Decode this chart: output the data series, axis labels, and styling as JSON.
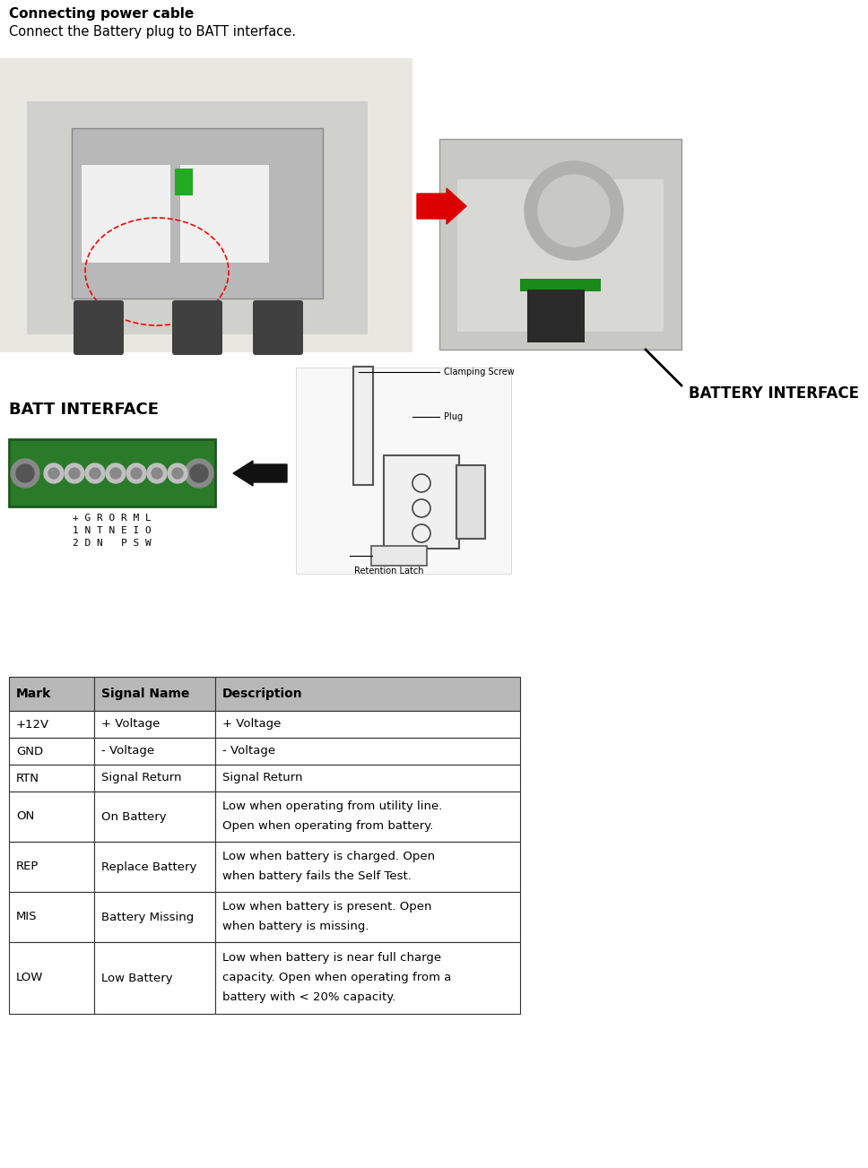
{
  "title": "Connecting power cable",
  "subtitle": "Connect the Battery plug to BATT interface.",
  "battery_interface_label": "BATTERY INTERFACE",
  "batt_interface_label": "BATT INTERFACE",
  "table_headers": [
    "Mark",
    "Signal Name",
    "Description"
  ],
  "table_rows": [
    [
      "+12V",
      "+ Voltage",
      "+ Voltage"
    ],
    [
      "GND",
      "- Voltage",
      "- Voltage"
    ],
    [
      "RTN",
      "Signal Return",
      "Signal Return"
    ],
    [
      "ON",
      "On Battery",
      "Low when operating from utility line.\nOpen when operating from battery."
    ],
    [
      "REP",
      "Replace Battery",
      "Low when battery is charged. Open\nwhen battery fails the Self Test."
    ],
    [
      "MIS",
      "Battery Missing",
      "Low when battery is present. Open\nwhen battery is missing."
    ],
    [
      "LOW",
      "Low Battery",
      "Low when battery is near full charge\ncapacity. Open when operating from a\nbattery with < 20% capacity."
    ]
  ],
  "header_bg": "#b8b8b8",
  "table_border": "#333333",
  "header_font_size": 10,
  "body_font_size": 9.5,
  "fig_width": 9.68,
  "fig_height": 13.03,
  "bg_color": "#ffffff",
  "title_fontsize": 11,
  "subtitle_fontsize": 10.5,
  "pin_labels_line1": "+ G R O R M L",
  "pin_labels_line2": "1 N T N E I O",
  "pin_labels_line3": "2 D N   P S W",
  "left_photo_color": "#c8c8c0",
  "right_photo_color": "#c0c0c0",
  "left_photo_detail_color": "#e8e8e0",
  "connector_green": "#2a7a2a"
}
